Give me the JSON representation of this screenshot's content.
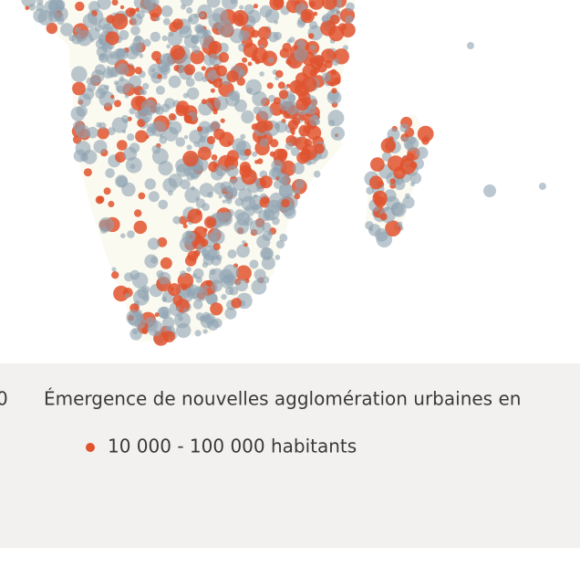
{
  "legend": {
    "prev_title_tail": "0",
    "title": "Émergence de nouvelles agglomération urbaines en",
    "items": [
      {
        "label": "10 000 - 100 000 habitants"
      }
    ]
  }
}
